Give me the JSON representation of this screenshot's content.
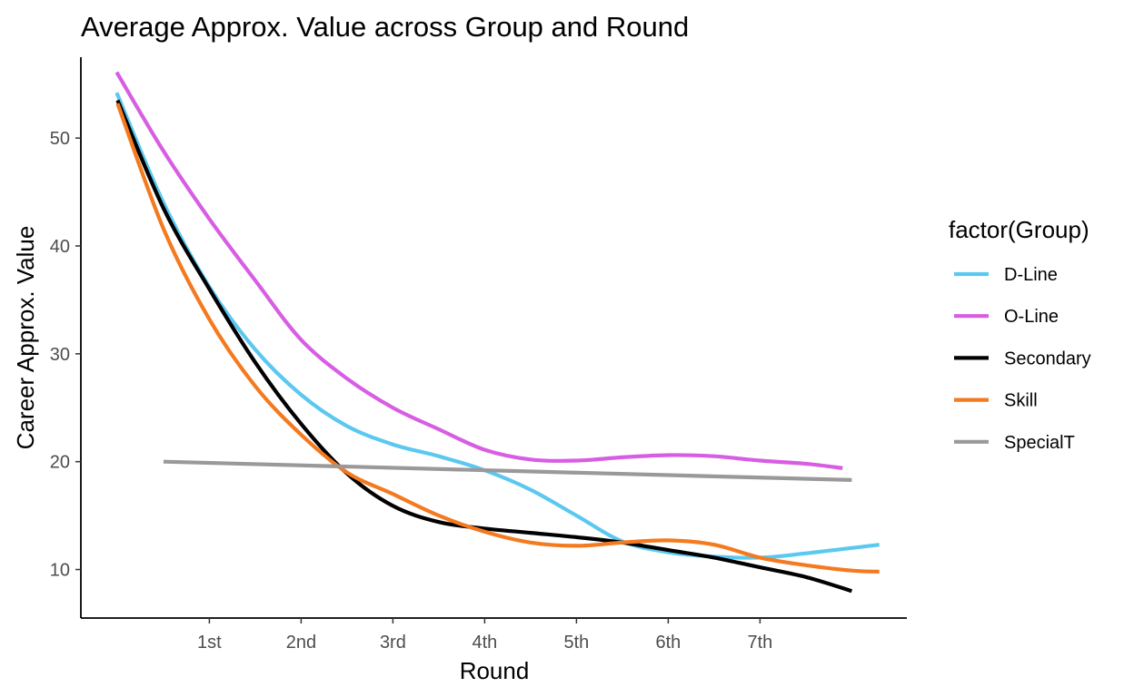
{
  "chart_data": {
    "type": "line",
    "title": "Average Approx. Value across Group and Round",
    "xlabel": "Round",
    "ylabel": "Career Approx. Value",
    "x_ticks": [
      {
        "label": "1st",
        "x": 1
      },
      {
        "label": "2nd",
        "x": 2
      },
      {
        "label": "3rd",
        "x": 3
      },
      {
        "label": "4th",
        "x": 4
      },
      {
        "label": "5th",
        "x": 5
      },
      {
        "label": "6th",
        "x": 6
      },
      {
        "label": "7th",
        "x": 7
      }
    ],
    "y_ticks": [
      10,
      20,
      30,
      40,
      50
    ],
    "xlim": [
      -0.4,
      8.6
    ],
    "ylim": [
      5.5,
      57.5
    ],
    "grid": false,
    "legend": {
      "title": "factor(Group)",
      "position": "right"
    },
    "series": [
      {
        "name": "D-Line",
        "color": "#5BC8F0",
        "points": [
          [
            -0.01,
            54.2
          ],
          [
            0.5,
            44.0
          ],
          [
            1.0,
            36.2
          ],
          [
            1.5,
            30.4
          ],
          [
            2.0,
            26.2
          ],
          [
            2.5,
            23.3
          ],
          [
            3.0,
            21.6
          ],
          [
            3.5,
            20.5
          ],
          [
            4.0,
            19.2
          ],
          [
            4.5,
            17.4
          ],
          [
            5.0,
            15.0
          ],
          [
            5.5,
            12.6
          ],
          [
            6.0,
            11.6
          ],
          [
            6.5,
            11.2
          ],
          [
            7.0,
            11.1
          ],
          [
            7.5,
            11.5
          ],
          [
            8.0,
            12.0
          ],
          [
            8.3,
            12.3
          ]
        ]
      },
      {
        "name": "O-Line",
        "color": "#D75EE3",
        "points": [
          [
            -0.01,
            56.1
          ],
          [
            0.5,
            48.8
          ],
          [
            1.0,
            42.5
          ],
          [
            1.5,
            36.8
          ],
          [
            2.0,
            31.3
          ],
          [
            2.5,
            27.7
          ],
          [
            3.0,
            25.0
          ],
          [
            3.5,
            23.0
          ],
          [
            4.0,
            21.1
          ],
          [
            4.5,
            20.2
          ],
          [
            5.0,
            20.1
          ],
          [
            5.5,
            20.4
          ],
          [
            6.0,
            20.6
          ],
          [
            6.5,
            20.5
          ],
          [
            7.0,
            20.1
          ],
          [
            7.5,
            19.8
          ],
          [
            7.9,
            19.4
          ]
        ]
      },
      {
        "name": "Secondary",
        "color": "#000000",
        "points": [
          [
            0.0,
            53.5
          ],
          [
            0.5,
            43.5
          ],
          [
            1.0,
            36.0
          ],
          [
            1.5,
            29.2
          ],
          [
            2.0,
            23.5
          ],
          [
            2.5,
            18.9
          ],
          [
            3.0,
            15.9
          ],
          [
            3.5,
            14.4
          ],
          [
            4.0,
            13.8
          ],
          [
            4.5,
            13.4
          ],
          [
            5.0,
            13.0
          ],
          [
            5.5,
            12.5
          ],
          [
            6.0,
            11.8
          ],
          [
            6.5,
            11.1
          ],
          [
            7.0,
            10.2
          ],
          [
            7.5,
            9.3
          ],
          [
            8.0,
            8.0
          ]
        ]
      },
      {
        "name": "Skill",
        "color": "#F47A20",
        "points": [
          [
            0.0,
            53.2
          ],
          [
            0.5,
            41.6
          ],
          [
            1.0,
            33.2
          ],
          [
            1.5,
            27.0
          ],
          [
            2.0,
            22.5
          ],
          [
            2.5,
            19.0
          ],
          [
            3.0,
            17.0
          ],
          [
            3.5,
            15.0
          ],
          [
            4.0,
            13.5
          ],
          [
            4.5,
            12.5
          ],
          [
            5.0,
            12.2
          ],
          [
            5.5,
            12.5
          ],
          [
            6.0,
            12.7
          ],
          [
            6.5,
            12.3
          ],
          [
            7.0,
            11.1
          ],
          [
            7.5,
            10.4
          ],
          [
            8.0,
            9.9
          ],
          [
            8.3,
            9.8
          ]
        ]
      },
      {
        "name": "SpecialT",
        "color": "#999999",
        "points": [
          [
            0.5,
            20.0
          ],
          [
            8.0,
            18.3
          ]
        ]
      }
    ]
  }
}
